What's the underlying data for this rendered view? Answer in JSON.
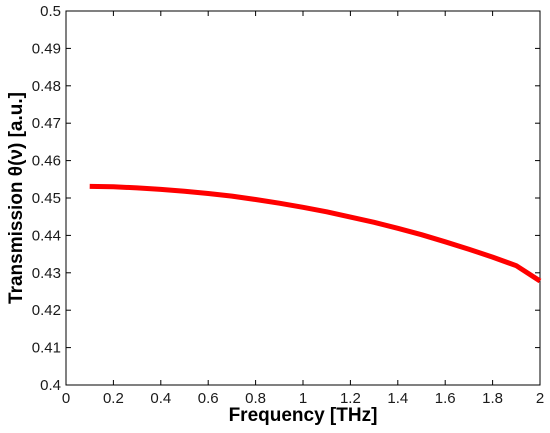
{
  "chart_data": {
    "type": "line",
    "title": "",
    "xlabel": "Frequency [THz]",
    "ylabel": "Transmission θ(ν) [a.u.]",
    "xlim": [
      0,
      2
    ],
    "ylim": [
      0.4,
      0.5
    ],
    "x_ticks": [
      "0",
      "0.2",
      "0.4",
      "0.6",
      "0.8",
      "1",
      "1.2",
      "1.4",
      "1.6",
      "1.8",
      "2"
    ],
    "y_ticks": [
      "0.4",
      "0.41",
      "0.42",
      "0.43",
      "0.44",
      "0.45",
      "0.46",
      "0.47",
      "0.48",
      "0.49",
      "0.5"
    ],
    "grid": false,
    "legend": "none",
    "series": [
      {
        "color": "#ff0000",
        "x": [
          0.1,
          0.2,
          0.3,
          0.4,
          0.5,
          0.6,
          0.7,
          0.8,
          0.9,
          1.0,
          1.1,
          1.2,
          1.3,
          1.4,
          1.5,
          1.6,
          1.7,
          1.8,
          1.9,
          2.0
        ],
        "y": [
          0.4531,
          0.453,
          0.4527,
          0.4523,
          0.4518,
          0.4512,
          0.4505,
          0.4496,
          0.4486,
          0.4475,
          0.4463,
          0.4449,
          0.4435,
          0.4419,
          0.4402,
          0.4383,
          0.4363,
          0.4342,
          0.4319,
          0.4278
        ]
      }
    ]
  }
}
